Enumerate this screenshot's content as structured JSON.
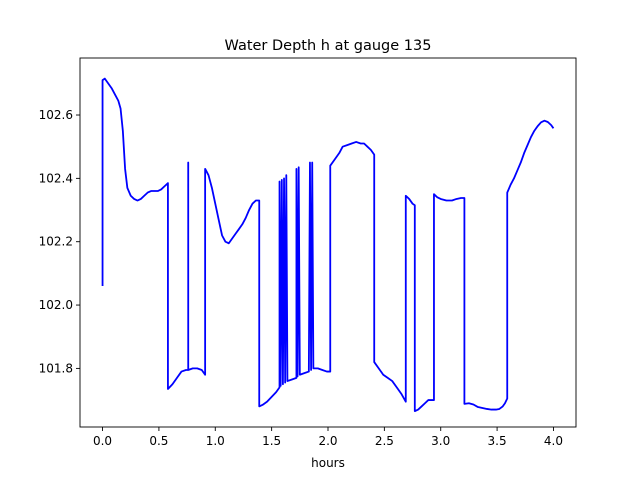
{
  "chart_data": {
    "type": "line",
    "title": "Water Depth h at gauge 135",
    "xlabel": "hours",
    "ylabel": "",
    "xlim": [
      -0.2,
      4.2
    ],
    "ylim": [
      101.615,
      102.78
    ],
    "xticks": [
      0.0,
      0.5,
      1.0,
      1.5,
      2.0,
      2.5,
      3.0,
      3.5,
      4.0
    ],
    "xtick_labels": [
      "0.0",
      "0.5",
      "1.0",
      "1.5",
      "2.0",
      "2.5",
      "3.0",
      "3.5",
      "4.0"
    ],
    "yticks": [
      101.8,
      102.0,
      102.2,
      102.4,
      102.6
    ],
    "ytick_labels": [
      "101.8",
      "102.0",
      "102.2",
      "102.4",
      "102.6"
    ],
    "grid": false,
    "series": [
      {
        "color": "#0000ff",
        "points": [
          [
            0.0,
            102.06
          ],
          [
            0.0,
            102.71
          ],
          [
            0.02,
            102.715
          ],
          [
            0.05,
            102.7
          ],
          [
            0.08,
            102.685
          ],
          [
            0.11,
            102.665
          ],
          [
            0.14,
            102.645
          ],
          [
            0.16,
            102.62
          ],
          [
            0.18,
            102.55
          ],
          [
            0.2,
            102.43
          ],
          [
            0.22,
            102.37
          ],
          [
            0.25,
            102.345
          ],
          [
            0.28,
            102.335
          ],
          [
            0.31,
            102.33
          ],
          [
            0.34,
            102.335
          ],
          [
            0.37,
            102.345
          ],
          [
            0.4,
            102.355
          ],
          [
            0.43,
            102.36
          ],
          [
            0.46,
            102.36
          ],
          [
            0.49,
            102.36
          ],
          [
            0.52,
            102.365
          ],
          [
            0.55,
            102.375
          ],
          [
            0.58,
            102.385
          ],
          [
            0.58,
            101.735
          ],
          [
            0.62,
            101.75
          ],
          [
            0.66,
            101.77
          ],
          [
            0.7,
            101.79
          ],
          [
            0.74,
            101.795
          ],
          [
            0.76,
            101.795
          ],
          [
            0.76,
            102.45
          ],
          [
            0.76,
            101.795
          ],
          [
            0.8,
            101.8
          ],
          [
            0.84,
            101.8
          ],
          [
            0.88,
            101.795
          ],
          [
            0.91,
            101.78
          ],
          [
            0.91,
            102.43
          ],
          [
            0.94,
            102.41
          ],
          [
            0.97,
            102.37
          ],
          [
            1.0,
            102.32
          ],
          [
            1.03,
            102.27
          ],
          [
            1.06,
            102.22
          ],
          [
            1.09,
            102.2
          ],
          [
            1.12,
            102.195
          ],
          [
            1.15,
            102.21
          ],
          [
            1.18,
            102.225
          ],
          [
            1.21,
            102.24
          ],
          [
            1.24,
            102.255
          ],
          [
            1.27,
            102.275
          ],
          [
            1.3,
            102.3
          ],
          [
            1.33,
            102.32
          ],
          [
            1.36,
            102.33
          ],
          [
            1.39,
            102.33
          ],
          [
            1.39,
            101.68
          ],
          [
            1.42,
            101.685
          ],
          [
            1.46,
            101.695
          ],
          [
            1.5,
            101.71
          ],
          [
            1.54,
            101.725
          ],
          [
            1.57,
            101.74
          ],
          [
            1.57,
            102.39
          ],
          [
            1.58,
            101.745
          ],
          [
            1.59,
            102.395
          ],
          [
            1.6,
            101.75
          ],
          [
            1.61,
            102.4
          ],
          [
            1.62,
            101.755
          ],
          [
            1.63,
            102.41
          ],
          [
            1.64,
            101.76
          ],
          [
            1.68,
            101.765
          ],
          [
            1.72,
            101.77
          ],
          [
            1.72,
            102.43
          ],
          [
            1.73,
            101.775
          ],
          [
            1.74,
            102.435
          ],
          [
            1.75,
            101.78
          ],
          [
            1.79,
            101.785
          ],
          [
            1.83,
            101.79
          ],
          [
            1.84,
            102.45
          ],
          [
            1.85,
            101.795
          ],
          [
            1.86,
            102.45
          ],
          [
            1.87,
            101.8
          ],
          [
            1.91,
            101.8
          ],
          [
            1.95,
            101.795
          ],
          [
            1.99,
            101.79
          ],
          [
            2.02,
            101.79
          ],
          [
            2.02,
            102.44
          ],
          [
            2.06,
            102.46
          ],
          [
            2.1,
            102.48
          ],
          [
            2.13,
            102.5
          ],
          [
            2.17,
            102.505
          ],
          [
            2.21,
            102.51
          ],
          [
            2.25,
            102.515
          ],
          [
            2.29,
            102.51
          ],
          [
            2.32,
            102.51
          ],
          [
            2.35,
            102.5
          ],
          [
            2.38,
            102.49
          ],
          [
            2.41,
            102.475
          ],
          [
            2.41,
            101.82
          ],
          [
            2.45,
            101.8
          ],
          [
            2.49,
            101.78
          ],
          [
            2.53,
            101.77
          ],
          [
            2.57,
            101.76
          ],
          [
            2.61,
            101.74
          ],
          [
            2.65,
            101.72
          ],
          [
            2.69,
            101.695
          ],
          [
            2.69,
            102.345
          ],
          [
            2.72,
            102.335
          ],
          [
            2.75,
            102.32
          ],
          [
            2.77,
            102.315
          ],
          [
            2.77,
            101.665
          ],
          [
            2.8,
            101.67
          ],
          [
            2.83,
            101.68
          ],
          [
            2.86,
            101.69
          ],
          [
            2.89,
            101.7
          ],
          [
            2.92,
            101.7
          ],
          [
            2.94,
            101.7
          ],
          [
            2.94,
            102.35
          ],
          [
            2.97,
            102.34
          ],
          [
            3.0,
            102.335
          ],
          [
            3.05,
            102.33
          ],
          [
            3.1,
            102.33
          ],
          [
            3.14,
            102.335
          ],
          [
            3.18,
            102.338
          ],
          [
            3.21,
            102.338
          ],
          [
            3.21,
            101.688
          ],
          [
            3.25,
            101.69
          ],
          [
            3.29,
            101.686
          ],
          [
            3.33,
            101.678
          ],
          [
            3.37,
            101.675
          ],
          [
            3.41,
            101.672
          ],
          [
            3.45,
            101.67
          ],
          [
            3.49,
            101.67
          ],
          [
            3.52,
            101.672
          ],
          [
            3.55,
            101.68
          ],
          [
            3.57,
            101.69
          ],
          [
            3.59,
            101.705
          ],
          [
            3.59,
            102.355
          ],
          [
            3.62,
            102.38
          ],
          [
            3.65,
            102.4
          ],
          [
            3.68,
            102.425
          ],
          [
            3.71,
            102.45
          ],
          [
            3.74,
            102.48
          ],
          [
            3.77,
            102.505
          ],
          [
            3.8,
            102.53
          ],
          [
            3.83,
            102.55
          ],
          [
            3.86,
            102.565
          ],
          [
            3.89,
            102.577
          ],
          [
            3.92,
            102.582
          ],
          [
            3.95,
            102.578
          ],
          [
            3.98,
            102.568
          ],
          [
            4.0,
            102.558
          ]
        ]
      }
    ]
  }
}
